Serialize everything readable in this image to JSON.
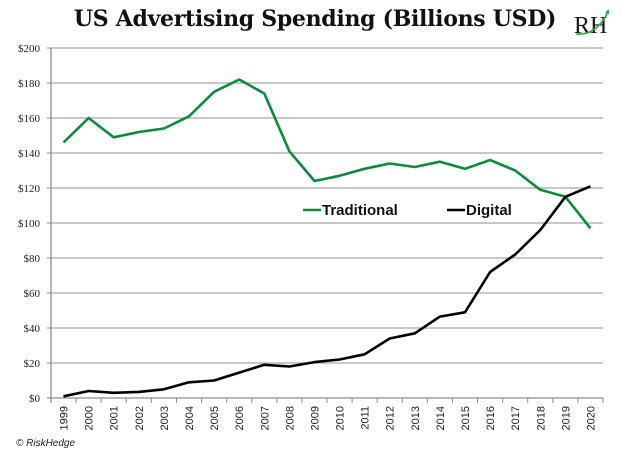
{
  "header": {
    "title": "US Advertising Spending (Billions USD)",
    "logo_text": "RH",
    "logo_name": "riskhedge-logo"
  },
  "footer": {
    "copyright": "© RiskHedge"
  },
  "colors": {
    "traditional": "#0e8a3e",
    "digital": "#000000",
    "grid": "#a6a6a6",
    "axis": "#8c8c8c"
  },
  "chart_data": {
    "type": "line",
    "title": "US Advertising Spending (Billions USD)",
    "xlabel": "",
    "ylabel": "",
    "categories": [
      "1999",
      "2000",
      "2001",
      "2002",
      "2003",
      "2004",
      "2005",
      "2006",
      "2007",
      "2008",
      "2009",
      "2010",
      "2011",
      "2012",
      "2013",
      "2014",
      "2015",
      "2016",
      "2017",
      "2018",
      "2019",
      "2020"
    ],
    "ylim": [
      0,
      200
    ],
    "y_ticks": [
      0,
      20,
      40,
      60,
      80,
      100,
      120,
      140,
      160,
      180,
      200
    ],
    "y_tick_labels": [
      "$0",
      "$20",
      "$40",
      "$60",
      "$80",
      "$100",
      "$120",
      "$140",
      "$160",
      "$180",
      "$200"
    ],
    "grid": true,
    "legend_position": "center-right",
    "series": [
      {
        "name": "Traditional",
        "color": "#0e8a3e",
        "values": [
          146,
          160,
          149,
          152,
          154,
          161,
          175,
          182,
          174,
          141,
          124,
          127,
          131,
          134,
          132,
          135,
          131,
          136,
          130,
          119,
          115,
          97
        ]
      },
      {
        "name": "Digital",
        "color": "#000000",
        "values": [
          1,
          4,
          3,
          3.5,
          5,
          9,
          10,
          14.5,
          19,
          18,
          20.5,
          22,
          25,
          34,
          37,
          46.5,
          49,
          72,
          82,
          96,
          115,
          121
        ]
      }
    ]
  }
}
